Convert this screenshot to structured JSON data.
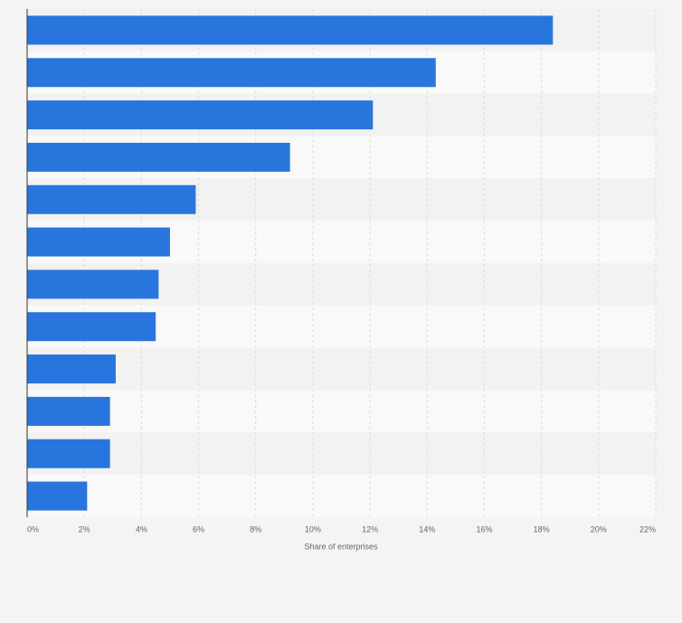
{
  "chart_data": {
    "type": "barh",
    "x_label": "Share of enterprises",
    "categories": [
      null,
      null,
      null,
      null,
      null,
      null,
      null,
      null,
      null,
      null,
      null,
      null
    ],
    "values": [
      18.4,
      14.3,
      12.1,
      9.2,
      5.9,
      5.0,
      4.6,
      4.5,
      3.1,
      2.9,
      2.9,
      2.1
    ],
    "color": "#2876dd",
    "xlim": [
      0,
      22
    ],
    "xticks": [
      {
        "value": 0,
        "label": "0%"
      },
      {
        "value": 2,
        "label": "2%"
      },
      {
        "value": 4,
        "label": "4%"
      },
      {
        "value": 6,
        "label": "6%"
      },
      {
        "value": 8,
        "label": "8%"
      },
      {
        "value": 10,
        "label": "10%"
      },
      {
        "value": 12,
        "label": "12%"
      },
      {
        "value": 14,
        "label": "14%"
      },
      {
        "value": 16,
        "label": "16%"
      },
      {
        "value": 18,
        "label": "18%"
      },
      {
        "value": 20,
        "label": "20%"
      },
      {
        "value": 22,
        "label": "22%"
      }
    ],
    "grid": true
  }
}
